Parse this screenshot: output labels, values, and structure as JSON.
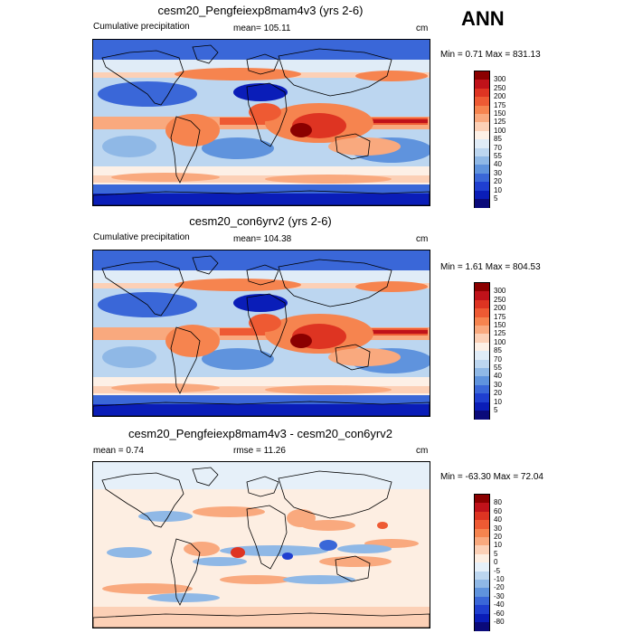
{
  "header": {
    "season": "ANN"
  },
  "panels": [
    {
      "title": "cesm20_Pengfeiexp8mam4v3 (yrs 2-6)",
      "left_label": "Cumulative precipitation",
      "center_label": "mean= 105.11",
      "units": "cm",
      "minmax": "Min =   0.71 Max = 831.13",
      "type": "field"
    },
    {
      "title": "cesm20_con6yrv2 (yrs 2-6)",
      "left_label": "Cumulative precipitation",
      "center_label": "mean= 104.38",
      "units": "cm",
      "minmax": "Min =   1.61 Max = 804.53",
      "type": "field"
    },
    {
      "title": "cesm20_Pengfeiexp8mam4v3 - cesm20_con6yrv2",
      "left_label": "mean =   0.74",
      "center_label": "rmse =  11.26",
      "units": "cm",
      "minmax": "Min = -63.30 Max =  72.04",
      "type": "diff"
    }
  ],
  "colorbars": {
    "field": {
      "labels": [
        "300",
        "250",
        "200",
        "175",
        "150",
        "125",
        "100",
        "85",
        "70",
        "55",
        "40",
        "30",
        "20",
        "10",
        "5"
      ],
      "colors": [
        "#8b0000",
        "#c0121a",
        "#de3422",
        "#ee5a33",
        "#f6844f",
        "#f9a97e",
        "#fcd0b6",
        "#fdf0e6",
        "#e0ecf7",
        "#bcd6f0",
        "#8fb8e6",
        "#5f93dd",
        "#3a67d8",
        "#1f3fd0",
        "#0a1db8",
        "#0a0a7a"
      ]
    },
    "diff": {
      "labels": [
        "80",
        "60",
        "40",
        "30",
        "20",
        "10",
        "5",
        "0",
        "-5",
        "-10",
        "-20",
        "-30",
        "-40",
        "-60",
        "-80"
      ],
      "colors": [
        "#8b0000",
        "#c0121a",
        "#de3422",
        "#ee5a33",
        "#f6844f",
        "#f9a97e",
        "#fcd0b6",
        "#fdeee2",
        "#e6f0f9",
        "#bcd6f0",
        "#8fb8e6",
        "#5f93dd",
        "#3a67d8",
        "#1f3fd0",
        "#0a1db8",
        "#0a0a7a"
      ]
    }
  }
}
